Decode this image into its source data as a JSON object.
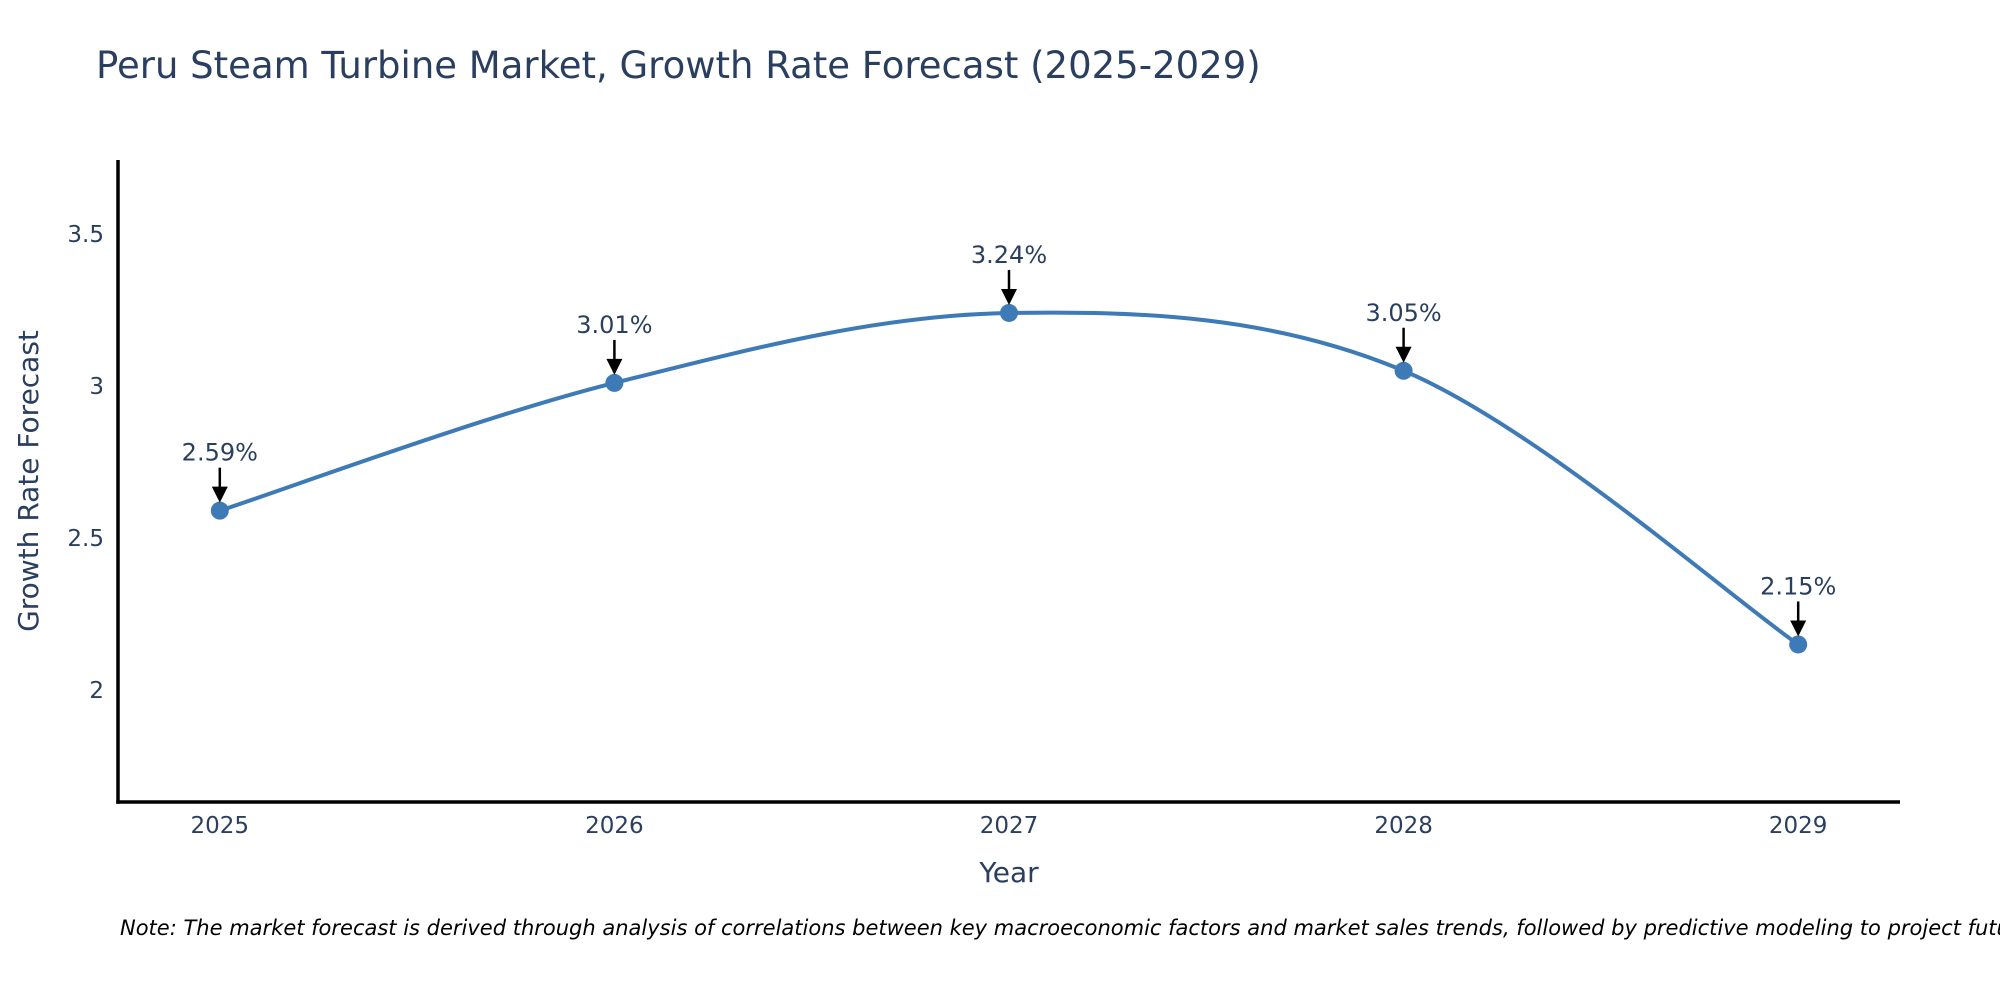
{
  "chart_data": {
    "type": "line",
    "title": "Peru Steam Turbine Market, Growth Rate Forecast (2025-2029)",
    "xlabel": "Year",
    "ylabel": "Growth Rate Forecast",
    "x": [
      2025,
      2026,
      2027,
      2028,
      2029
    ],
    "values": [
      2.59,
      3.01,
      3.24,
      3.05,
      2.15
    ],
    "point_labels": [
      "2.59%",
      "3.01%",
      "3.24%",
      "3.05%",
      "2.15%"
    ],
    "xtick_labels": [
      "2025",
      "2026",
      "2027",
      "2028",
      "2029"
    ],
    "ytick_values": [
      2,
      2.5,
      3,
      3.5
    ],
    "ytick_labels": [
      "2",
      "2.5",
      "3",
      "3.5"
    ],
    "xlim": [
      2024.742,
      2029.258
    ],
    "ylim": [
      1.632,
      3.743
    ],
    "line_shape": "spline",
    "grid": false,
    "legend": "none",
    "colors": {
      "line": "#3d7ab6",
      "marker": "#3d7ab6",
      "axis_line": "#000000",
      "tick_text": "#2a3f5f",
      "title_text": "#2a3f5f",
      "annotation_text": "#2a3f5f",
      "annotation_arrow": "#000000"
    }
  },
  "note": {
    "text": "Note: The market forecast is derived through analysis of correlations between key macroeconomic factors and market sales trends, followed by predictive modeling to project future sales"
  }
}
